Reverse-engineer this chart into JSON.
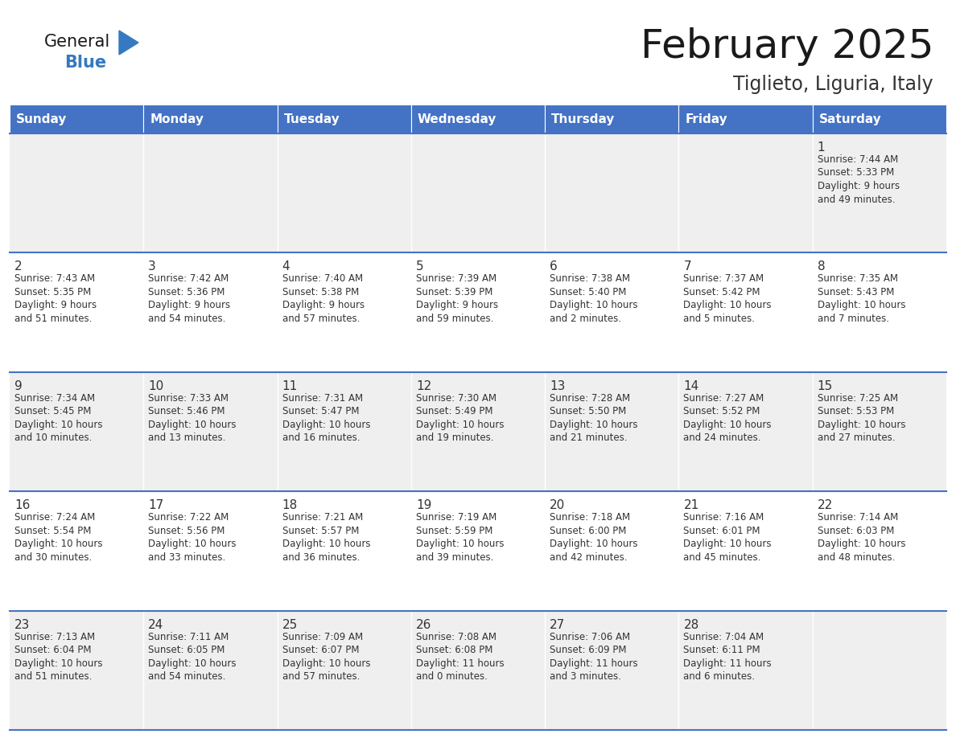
{
  "title": "February 2025",
  "subtitle": "Tiglieto, Liguria, Italy",
  "header_bg": "#4472C4",
  "header_text_color": "#FFFFFF",
  "header_days": [
    "Sunday",
    "Monday",
    "Tuesday",
    "Wednesday",
    "Thursday",
    "Friday",
    "Saturday"
  ],
  "row_bg_odd": "#EFEFEF",
  "row_bg_even": "#FFFFFF",
  "cell_text_color": "#333333",
  "day_num_color": "#333333",
  "grid_line_color": "#4472C4",
  "title_color": "#1a1a1a",
  "subtitle_color": "#333333",
  "logo_general_color": "#1a1a1a",
  "logo_blue_color": "#3579C0",
  "weeks": [
    [
      {
        "day": null,
        "info": null
      },
      {
        "day": null,
        "info": null
      },
      {
        "day": null,
        "info": null
      },
      {
        "day": null,
        "info": null
      },
      {
        "day": null,
        "info": null
      },
      {
        "day": null,
        "info": null
      },
      {
        "day": 1,
        "info": "Sunrise: 7:44 AM\nSunset: 5:33 PM\nDaylight: 9 hours\nand 49 minutes."
      }
    ],
    [
      {
        "day": 2,
        "info": "Sunrise: 7:43 AM\nSunset: 5:35 PM\nDaylight: 9 hours\nand 51 minutes."
      },
      {
        "day": 3,
        "info": "Sunrise: 7:42 AM\nSunset: 5:36 PM\nDaylight: 9 hours\nand 54 minutes."
      },
      {
        "day": 4,
        "info": "Sunrise: 7:40 AM\nSunset: 5:38 PM\nDaylight: 9 hours\nand 57 minutes."
      },
      {
        "day": 5,
        "info": "Sunrise: 7:39 AM\nSunset: 5:39 PM\nDaylight: 9 hours\nand 59 minutes."
      },
      {
        "day": 6,
        "info": "Sunrise: 7:38 AM\nSunset: 5:40 PM\nDaylight: 10 hours\nand 2 minutes."
      },
      {
        "day": 7,
        "info": "Sunrise: 7:37 AM\nSunset: 5:42 PM\nDaylight: 10 hours\nand 5 minutes."
      },
      {
        "day": 8,
        "info": "Sunrise: 7:35 AM\nSunset: 5:43 PM\nDaylight: 10 hours\nand 7 minutes."
      }
    ],
    [
      {
        "day": 9,
        "info": "Sunrise: 7:34 AM\nSunset: 5:45 PM\nDaylight: 10 hours\nand 10 minutes."
      },
      {
        "day": 10,
        "info": "Sunrise: 7:33 AM\nSunset: 5:46 PM\nDaylight: 10 hours\nand 13 minutes."
      },
      {
        "day": 11,
        "info": "Sunrise: 7:31 AM\nSunset: 5:47 PM\nDaylight: 10 hours\nand 16 minutes."
      },
      {
        "day": 12,
        "info": "Sunrise: 7:30 AM\nSunset: 5:49 PM\nDaylight: 10 hours\nand 19 minutes."
      },
      {
        "day": 13,
        "info": "Sunrise: 7:28 AM\nSunset: 5:50 PM\nDaylight: 10 hours\nand 21 minutes."
      },
      {
        "day": 14,
        "info": "Sunrise: 7:27 AM\nSunset: 5:52 PM\nDaylight: 10 hours\nand 24 minutes."
      },
      {
        "day": 15,
        "info": "Sunrise: 7:25 AM\nSunset: 5:53 PM\nDaylight: 10 hours\nand 27 minutes."
      }
    ],
    [
      {
        "day": 16,
        "info": "Sunrise: 7:24 AM\nSunset: 5:54 PM\nDaylight: 10 hours\nand 30 minutes."
      },
      {
        "day": 17,
        "info": "Sunrise: 7:22 AM\nSunset: 5:56 PM\nDaylight: 10 hours\nand 33 minutes."
      },
      {
        "day": 18,
        "info": "Sunrise: 7:21 AM\nSunset: 5:57 PM\nDaylight: 10 hours\nand 36 minutes."
      },
      {
        "day": 19,
        "info": "Sunrise: 7:19 AM\nSunset: 5:59 PM\nDaylight: 10 hours\nand 39 minutes."
      },
      {
        "day": 20,
        "info": "Sunrise: 7:18 AM\nSunset: 6:00 PM\nDaylight: 10 hours\nand 42 minutes."
      },
      {
        "day": 21,
        "info": "Sunrise: 7:16 AM\nSunset: 6:01 PM\nDaylight: 10 hours\nand 45 minutes."
      },
      {
        "day": 22,
        "info": "Sunrise: 7:14 AM\nSunset: 6:03 PM\nDaylight: 10 hours\nand 48 minutes."
      }
    ],
    [
      {
        "day": 23,
        "info": "Sunrise: 7:13 AM\nSunset: 6:04 PM\nDaylight: 10 hours\nand 51 minutes."
      },
      {
        "day": 24,
        "info": "Sunrise: 7:11 AM\nSunset: 6:05 PM\nDaylight: 10 hours\nand 54 minutes."
      },
      {
        "day": 25,
        "info": "Sunrise: 7:09 AM\nSunset: 6:07 PM\nDaylight: 10 hours\nand 57 minutes."
      },
      {
        "day": 26,
        "info": "Sunrise: 7:08 AM\nSunset: 6:08 PM\nDaylight: 11 hours\nand 0 minutes."
      },
      {
        "day": 27,
        "info": "Sunrise: 7:06 AM\nSunset: 6:09 PM\nDaylight: 11 hours\nand 3 minutes."
      },
      {
        "day": 28,
        "info": "Sunrise: 7:04 AM\nSunset: 6:11 PM\nDaylight: 11 hours\nand 6 minutes."
      },
      {
        "day": null,
        "info": null
      }
    ]
  ]
}
